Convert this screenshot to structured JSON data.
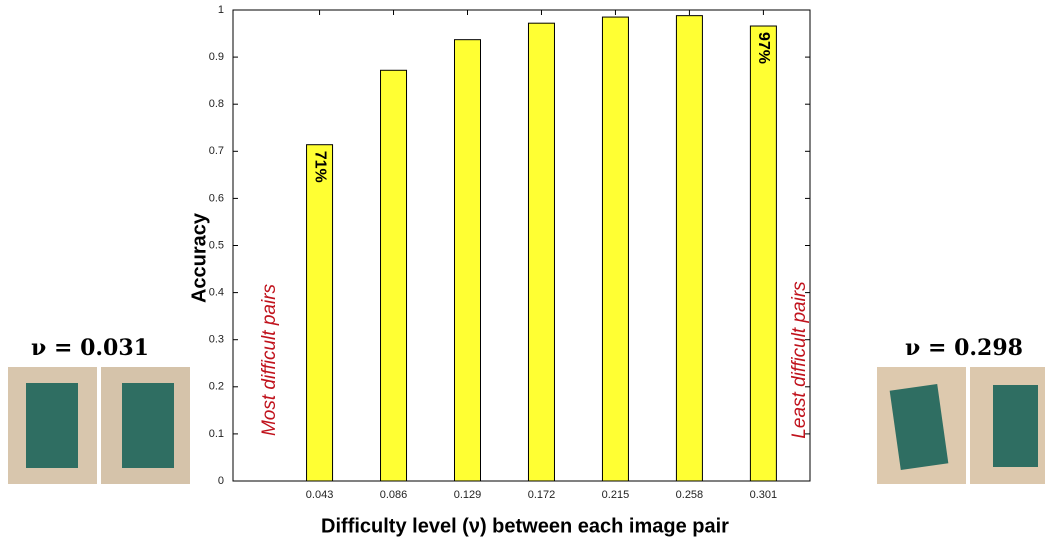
{
  "chart_data": {
    "type": "bar",
    "categories": [
      "0.043",
      "0.086",
      "0.129",
      "0.172",
      "0.215",
      "0.258",
      "0.301"
    ],
    "values": [
      0.714,
      0.872,
      0.937,
      0.972,
      0.985,
      0.988,
      0.966
    ],
    "value_labels": [
      "71%",
      null,
      null,
      null,
      null,
      null,
      "97%"
    ],
    "color": "#ffff33",
    "ylim": [
      0,
      1
    ],
    "yticks": [
      0,
      0.1,
      0.2,
      0.3,
      0.4,
      0.5,
      0.6,
      0.7,
      0.8,
      0.9,
      1
    ],
    "ylabel": "Accuracy",
    "xlabel": "Difficulty level (ν) between each image pair",
    "annotations": [
      "Most difficult pairs",
      "Least difficult pairs"
    ],
    "grid": false
  },
  "image_pairs": [
    {
      "label": "ν = 0.031"
    },
    {
      "label": "ν = 0.298"
    }
  ]
}
